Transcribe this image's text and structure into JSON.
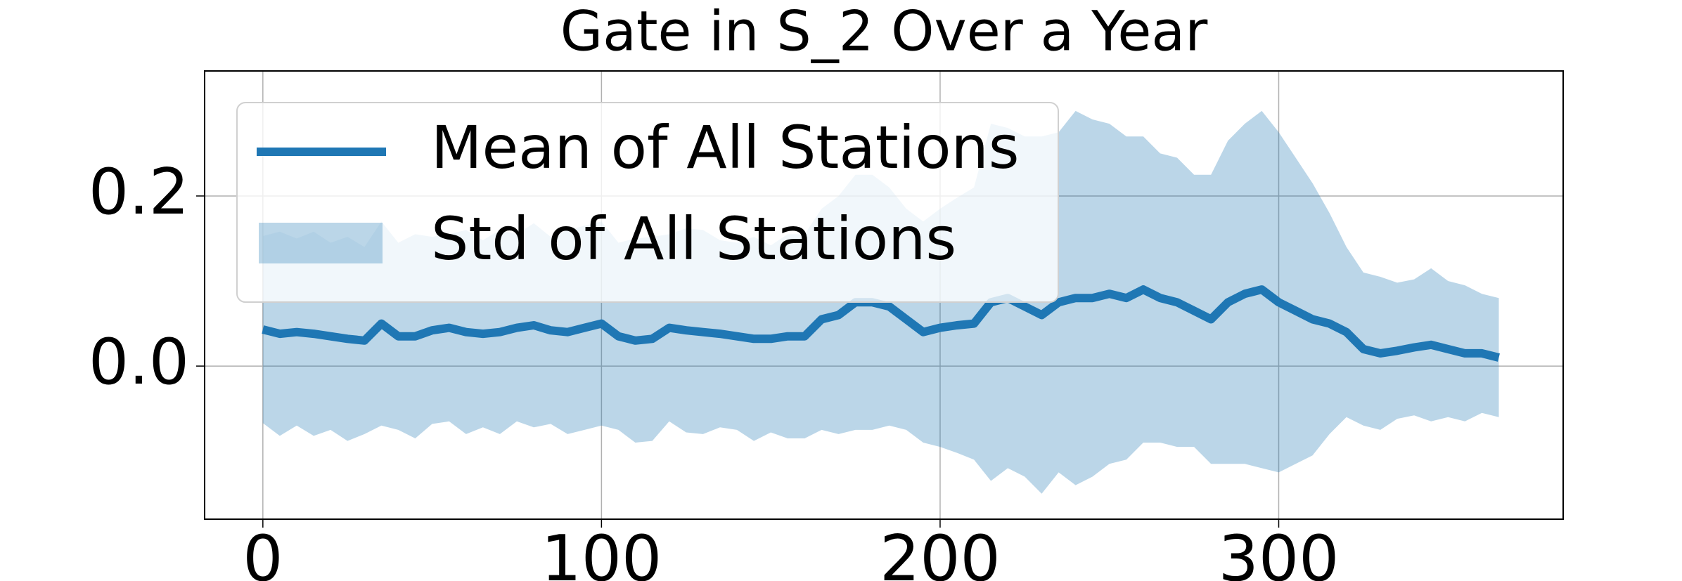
{
  "chart_data": {
    "type": "line",
    "title": "Gate in S_2 Over a Year",
    "x": [
      0,
      5,
      10,
      15,
      20,
      25,
      30,
      35,
      40,
      45,
      50,
      55,
      60,
      65,
      70,
      75,
      80,
      85,
      90,
      95,
      100,
      105,
      110,
      115,
      120,
      125,
      130,
      135,
      140,
      145,
      150,
      155,
      160,
      165,
      170,
      175,
      180,
      185,
      190,
      195,
      200,
      205,
      210,
      215,
      220,
      225,
      230,
      235,
      240,
      245,
      250,
      255,
      260,
      265,
      270,
      275,
      280,
      285,
      290,
      295,
      300,
      305,
      310,
      315,
      320,
      325,
      330,
      335,
      340,
      345,
      350,
      355,
      360,
      365
    ],
    "series": [
      {
        "name": "Mean of All Stations",
        "type": "line",
        "color": "#1f77b4",
        "values": [
          0.043,
          0.038,
          0.04,
          0.038,
          0.035,
          0.032,
          0.03,
          0.05,
          0.035,
          0.035,
          0.042,
          0.045,
          0.04,
          0.038,
          0.04,
          0.045,
          0.048,
          0.042,
          0.04,
          0.045,
          0.05,
          0.035,
          0.03,
          0.032,
          0.045,
          0.042,
          0.04,
          0.038,
          0.035,
          0.032,
          0.032,
          0.035,
          0.035,
          0.055,
          0.06,
          0.075,
          0.075,
          0.07,
          0.055,
          0.04,
          0.045,
          0.048,
          0.05,
          0.075,
          0.08,
          0.07,
          0.06,
          0.075,
          0.08,
          0.08,
          0.085,
          0.08,
          0.09,
          0.08,
          0.075,
          0.065,
          0.055,
          0.075,
          0.085,
          0.09,
          0.075,
          0.065,
          0.055,
          0.05,
          0.04,
          0.02,
          0.015,
          0.018,
          0.022,
          0.025,
          0.02,
          0.015,
          0.015,
          0.01
        ]
      },
      {
        "name": "Std of All Stations",
        "type": "band",
        "color": "#1f77b4",
        "values": [
          0.11,
          0.12,
          0.11,
          0.12,
          0.11,
          0.12,
          0.11,
          0.12,
          0.11,
          0.12,
          0.11,
          0.11,
          0.12,
          0.11,
          0.12,
          0.11,
          0.12,
          0.11,
          0.12,
          0.12,
          0.12,
          0.11,
          0.12,
          0.12,
          0.11,
          0.12,
          0.12,
          0.11,
          0.11,
          0.12,
          0.11,
          0.12,
          0.12,
          0.13,
          0.14,
          0.15,
          0.15,
          0.14,
          0.13,
          0.13,
          0.14,
          0.15,
          0.16,
          0.21,
          0.2,
          0.2,
          0.21,
          0.2,
          0.22,
          0.21,
          0.2,
          0.19,
          0.18,
          0.17,
          0.17,
          0.16,
          0.17,
          0.19,
          0.2,
          0.21,
          0.2,
          0.18,
          0.16,
          0.13,
          0.1,
          0.09,
          0.09,
          0.08,
          0.08,
          0.09,
          0.08,
          0.08,
          0.07,
          0.07
        ]
      }
    ],
    "xlim": [
      -17.2,
      384
    ],
    "ylim": [
      -0.18,
      0.347
    ],
    "xticks": [
      0,
      100,
      200,
      300
    ],
    "yticks": [
      {
        "value": 0,
        "label": "0.0"
      },
      {
        "value": 0.2,
        "label": "0.2"
      }
    ],
    "grid": true,
    "legend": "upper left"
  }
}
